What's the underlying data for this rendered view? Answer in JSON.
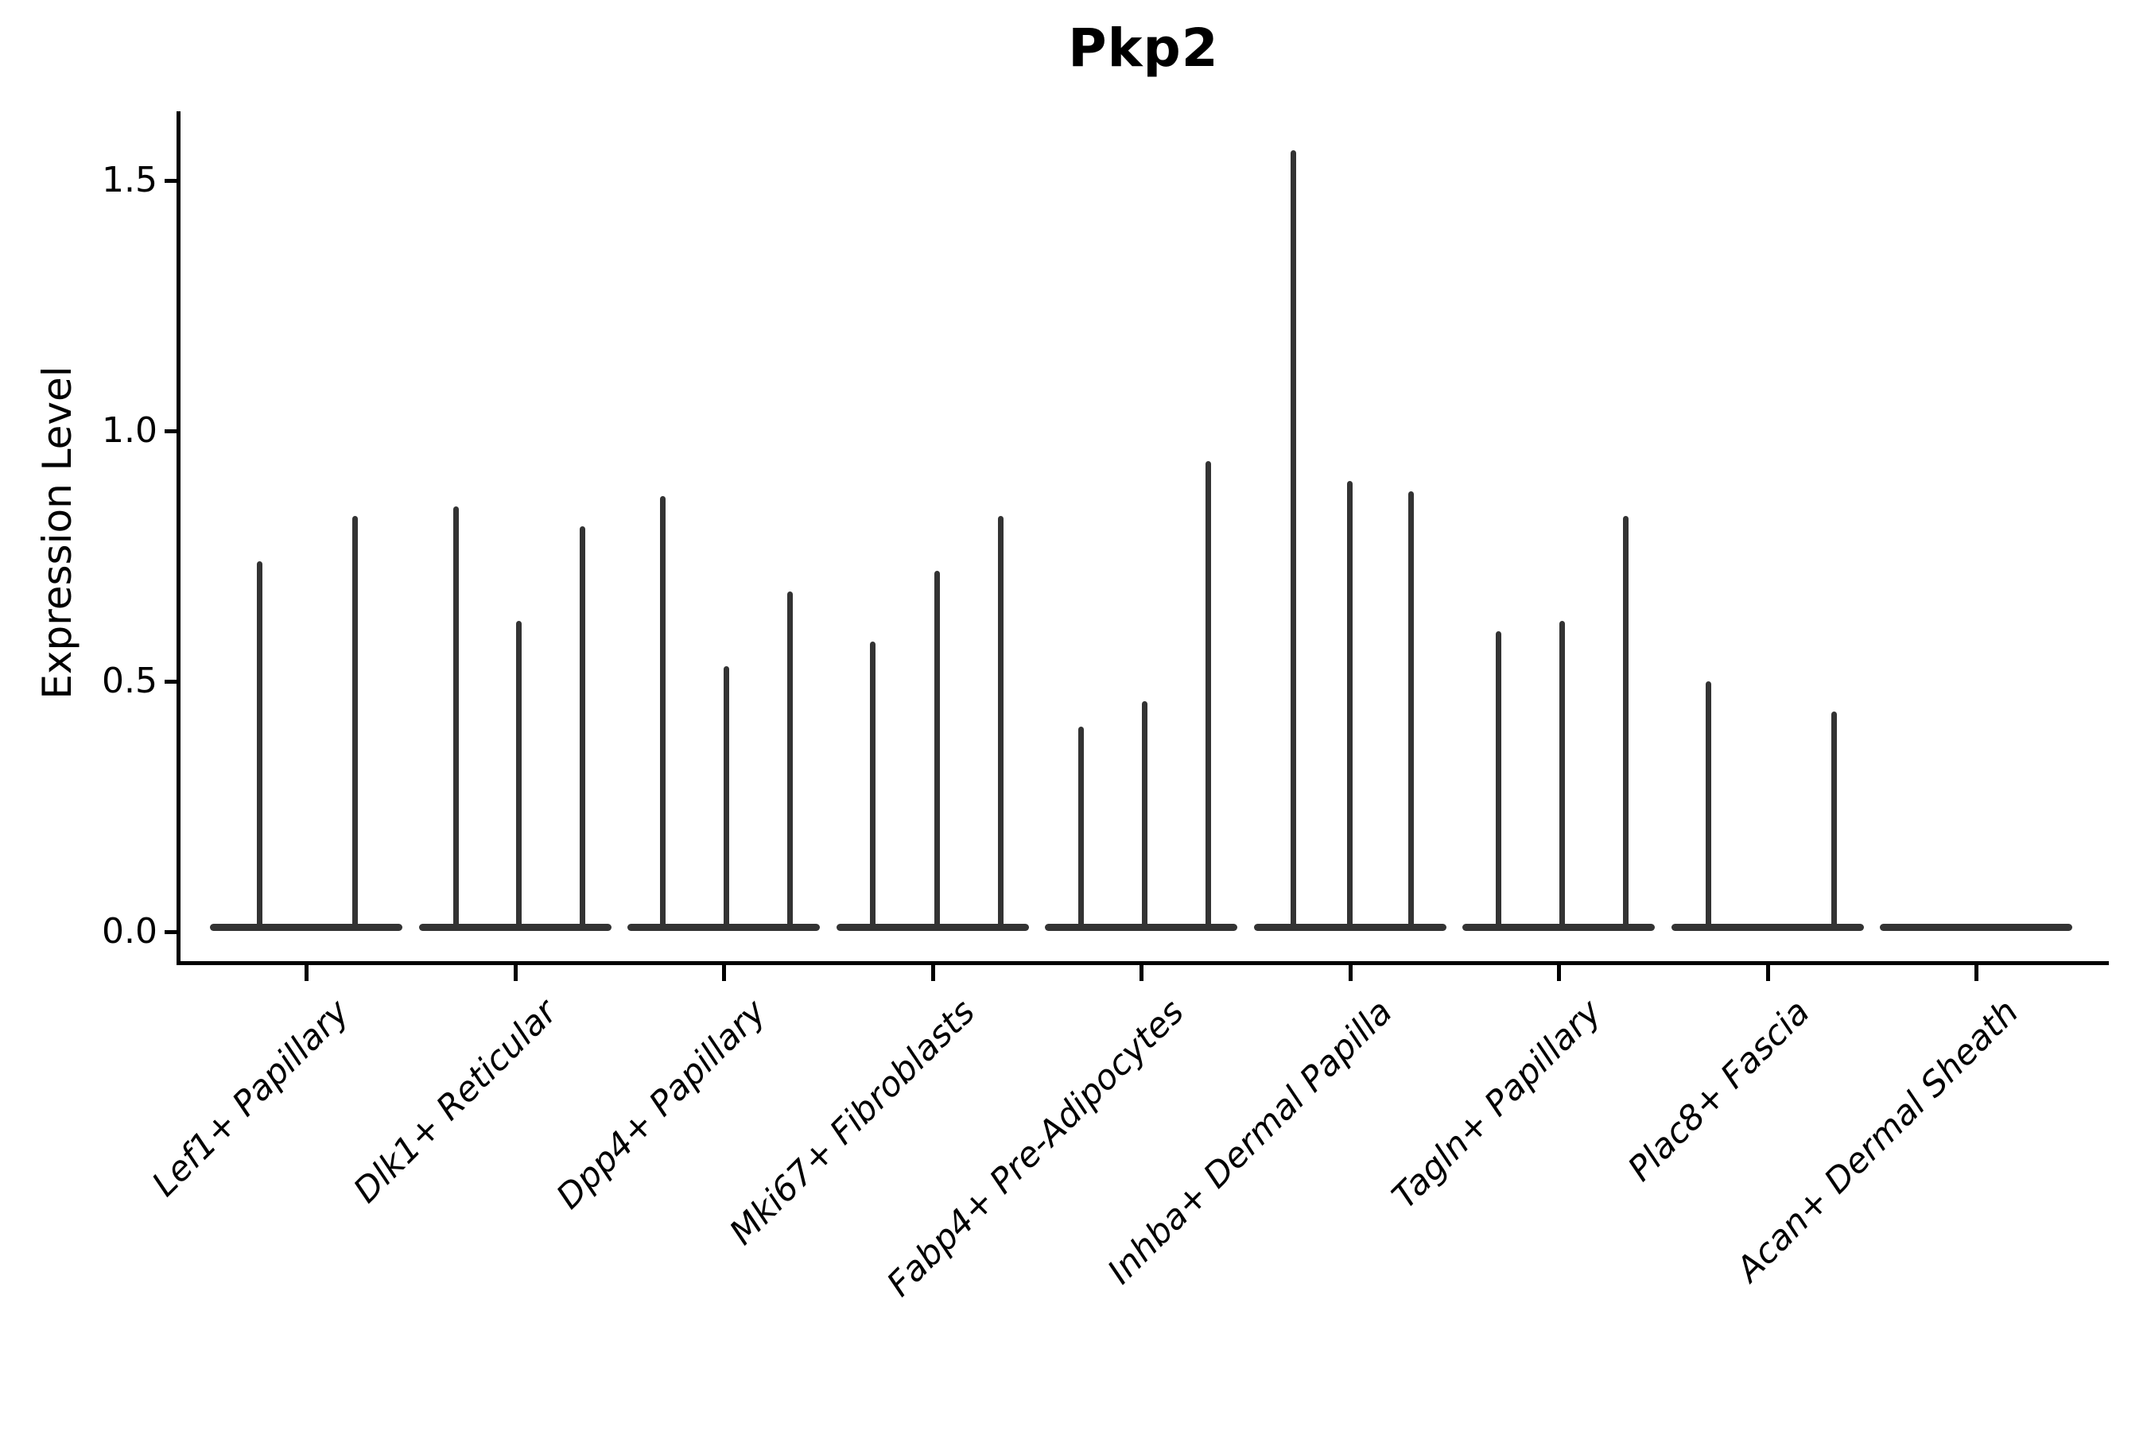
{
  "title": "Pkp2",
  "chart_data": {
    "type": "violin",
    "title": "Pkp2",
    "ylabel": "Expression Level",
    "xlabel": "",
    "ylim": [
      0,
      1.64
    ],
    "yticks": [
      "0.0",
      "0.5",
      "1.0",
      "1.5"
    ],
    "grid": false,
    "legend": "none",
    "style_note": "black left/bottom spines only; thin dark-gray spike violins with flat base at 0; x labels rotated 45deg italic",
    "categories": [
      "Lef1+ Papillary",
      "Dlk1+ Reticular",
      "Dpp4+ Papillary",
      "Mki67+ Fibroblasts",
      "Fabp4+ Pre-Adipocytes",
      "Inhba+ Dermal Papilla",
      "Tagln+ Papillary",
      "Plac8+ Fascia",
      "Acan+ Dermal Sheath"
    ],
    "violins": [
      {
        "category": "Lef1+ Papillary",
        "base_value": 0,
        "spikes": [
          {
            "dx": -59,
            "value": 0.74
          },
          {
            "dx": 61,
            "value": 0.83
          }
        ]
      },
      {
        "category": "Dlk1+ Reticular",
        "base_value": 0,
        "spikes": [
          {
            "dx": -75,
            "value": 0.85
          },
          {
            "dx": 4,
            "value": 0.62
          },
          {
            "dx": 84,
            "value": 0.81
          }
        ]
      },
      {
        "category": "Dpp4+ Papillary",
        "base_value": 0,
        "spikes": [
          {
            "dx": -77,
            "value": 0.87
          },
          {
            "dx": 3,
            "value": 0.53
          },
          {
            "dx": 83,
            "value": 0.68
          }
        ]
      },
      {
        "category": "Mki67+ Fibroblasts",
        "base_value": 0,
        "spikes": [
          {
            "dx": -76,
            "value": 0.58
          },
          {
            "dx": 5,
            "value": 0.72
          },
          {
            "dx": 85,
            "value": 0.83
          }
        ]
      },
      {
        "category": "Fabp4+ Pre-Adipocytes",
        "base_value": 0,
        "spikes": [
          {
            "dx": -76,
            "value": 0.41
          },
          {
            "dx": 4,
            "value": 0.46
          },
          {
            "dx": 84,
            "value": 0.94
          }
        ]
      },
      {
        "category": "Inhba+ Dermal Papilla",
        "base_value": 0,
        "spikes": [
          {
            "dx": -72,
            "value": 1.56
          },
          {
            "dx": -1,
            "value": 0.9
          },
          {
            "dx": 76,
            "value": 0.88
          }
        ]
      },
      {
        "category": "Tagln+ Papillary",
        "base_value": 0,
        "spikes": [
          {
            "dx": -76,
            "value": 0.6
          },
          {
            "dx": 4,
            "value": 0.62
          },
          {
            "dx": 84,
            "value": 0.83
          }
        ]
      },
      {
        "category": "Plac8+ Fascia",
        "base_value": 0,
        "spikes": [
          {
            "dx": -75,
            "value": 0.5
          },
          {
            "dx": 83,
            "value": 0.44
          }
        ]
      },
      {
        "category": "Acan+ Dermal Sheath",
        "base_value": 0,
        "spikes": []
      }
    ],
    "colors": {
      "violin": "#333333",
      "axis": "#000000",
      "background": "#ffffff"
    }
  }
}
